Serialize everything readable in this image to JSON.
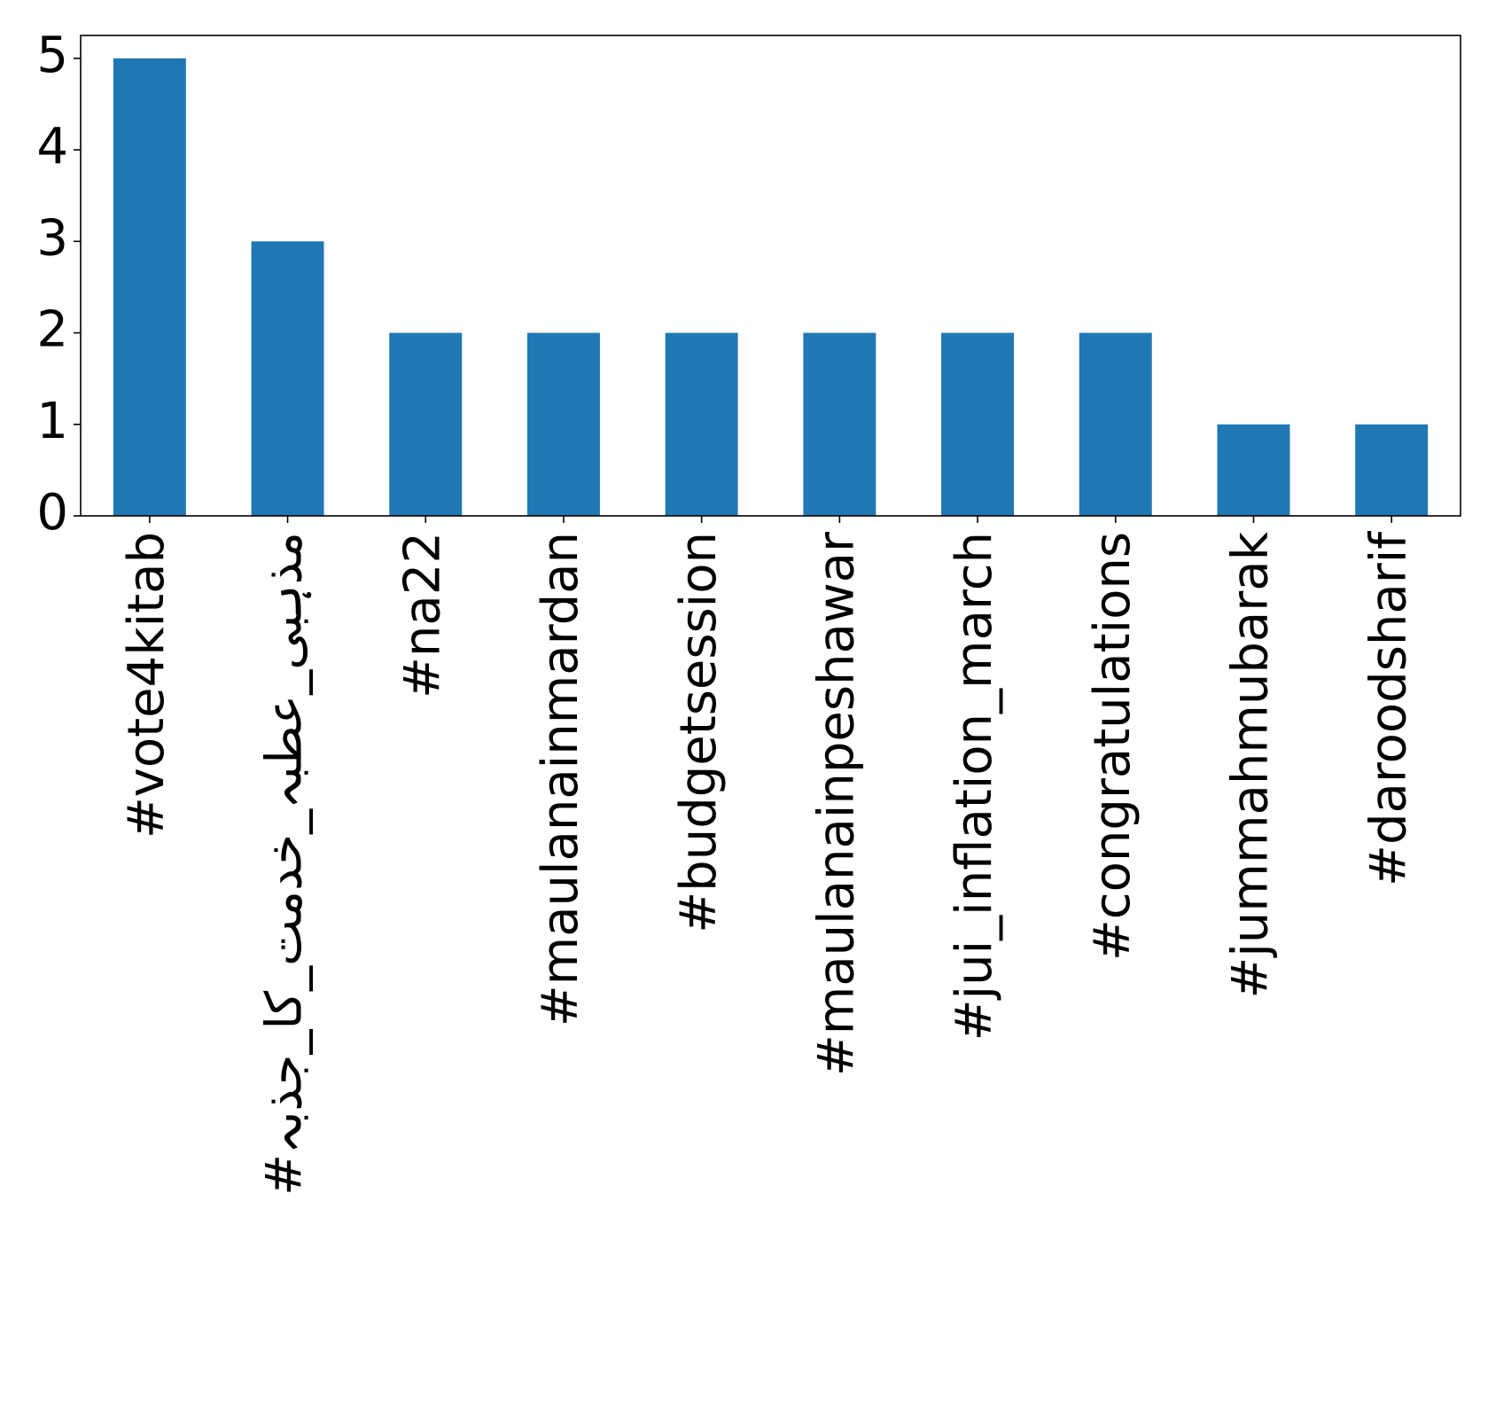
{
  "chart_data": {
    "type": "bar",
    "title": "",
    "xlabel": "",
    "ylabel": "",
    "categories": [
      "#vote4kitab",
      "#مذہبی_عطبہ_خدمت_کا_جذبہ",
      "#na22",
      "#maulanainmardan",
      "#budgetsession",
      "#maulanainpeshawar",
      "#jui_inflation_march",
      "#congratulations",
      "#jummahmubarak",
      "#daroodsharif"
    ],
    "values": [
      5,
      3,
      2,
      2,
      2,
      2,
      2,
      2,
      1,
      1
    ],
    "ylim": [
      0,
      5.25
    ],
    "yticks": [
      0,
      1,
      2,
      3,
      4,
      5
    ],
    "bar_color": "#1f77b4",
    "grid": false,
    "legend": "none"
  }
}
